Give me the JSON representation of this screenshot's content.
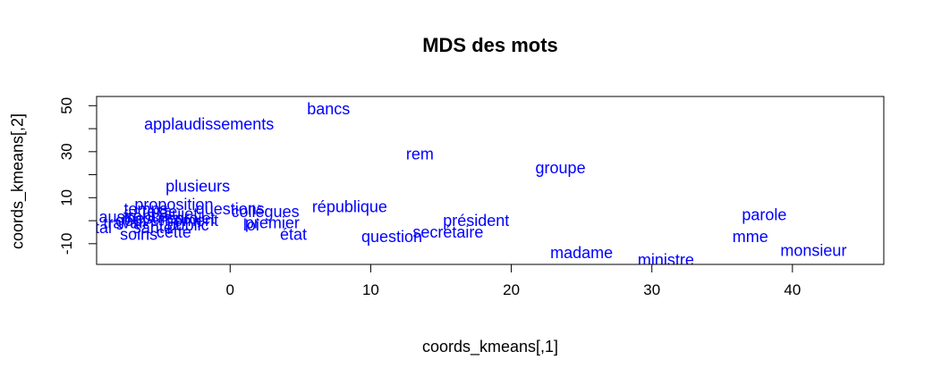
{
  "chart_data": {
    "type": "scatter",
    "title": "MDS des mots",
    "xlabel": "coords_kmeans[,1]",
    "ylabel": "coords_kmeans[,2]",
    "xlim": [
      -9.5,
      46.5
    ],
    "ylim": [
      -19,
      54
    ],
    "x_ticks": [
      0,
      10,
      20,
      30,
      40
    ],
    "y_ticks": [
      -10,
      10,
      30,
      50
    ],
    "y_minor_ticks": [
      -10,
      0,
      10,
      20,
      30,
      40,
      50
    ],
    "grid": false,
    "label_color": "#0000ff",
    "points": [
      {
        "label": "bancs",
        "x": 7.0,
        "y": 48.5
      },
      {
        "label": "applaudissements",
        "x": -1.5,
        "y": 42.0
      },
      {
        "label": "rem",
        "x": 13.5,
        "y": 29.0
      },
      {
        "label": "groupe",
        "x": 23.5,
        "y": 23.0
      },
      {
        "label": "plusieurs",
        "x": -2.3,
        "y": 15.0
      },
      {
        "label": "république",
        "x": 8.5,
        "y": 6.0
      },
      {
        "label": "parole",
        "x": 38.0,
        "y": 2.5
      },
      {
        "label": "président",
        "x": 17.5,
        "y": 0.0
      },
      {
        "label": "secrétaire",
        "x": 15.5,
        "y": -5.0
      },
      {
        "label": "question",
        "x": 11.5,
        "y": -7.0
      },
      {
        "label": "mme",
        "x": 37.0,
        "y": -7.0
      },
      {
        "label": "madame",
        "x": 25.0,
        "y": -14.0
      },
      {
        "label": "monsieur",
        "x": 41.5,
        "y": -13.0
      },
      {
        "label": "ministre",
        "x": 31.0,
        "y": -17.0
      },
      {
        "label": "collègues",
        "x": 2.5,
        "y": 4.0
      },
      {
        "label": "premier",
        "x": 3.0,
        "y": -1.0
      },
      {
        "label": "état",
        "x": 4.5,
        "y": -6.0
      },
      {
        "label": "questions",
        "x": 0.0,
        "y": 5.0
      },
      {
        "label": "proposition",
        "x": -4.0,
        "y": 7.0
      },
      {
        "label": "loi",
        "x": 1.5,
        "y": -2.0
      },
      {
        "label": "gouvernement",
        "x": -4.5,
        "y": 0.0
      },
      {
        "label": "france",
        "x": -6.0,
        "y": 2.0
      },
      {
        "label": "santé",
        "x": -5.5,
        "y": -3.0
      },
      {
        "label": "public",
        "x": -3.0,
        "y": -2.0
      },
      {
        "label": "soins",
        "x": -6.5,
        "y": -6.0
      },
      {
        "label": "texte",
        "x": -5.0,
        "y": 4.0
      },
      {
        "label": "travail",
        "x": -7.5,
        "y": -1.0
      },
      {
        "label": "projet",
        "x": -2.5,
        "y": 1.0
      },
      {
        "label": "cette",
        "x": -4.0,
        "y": -5.0
      },
      {
        "label": "temps",
        "x": -6.0,
        "y": 5.0
      },
      {
        "label": "sujet",
        "x": -3.5,
        "y": 3.0
      },
      {
        "label": "mesures",
        "x": -5.5,
        "y": 1.0
      },
      {
        "label": "total",
        "x": -9.5,
        "y": -3.0
      },
      {
        "label": "aussi",
        "x": -8.0,
        "y": 1.5
      }
    ]
  }
}
